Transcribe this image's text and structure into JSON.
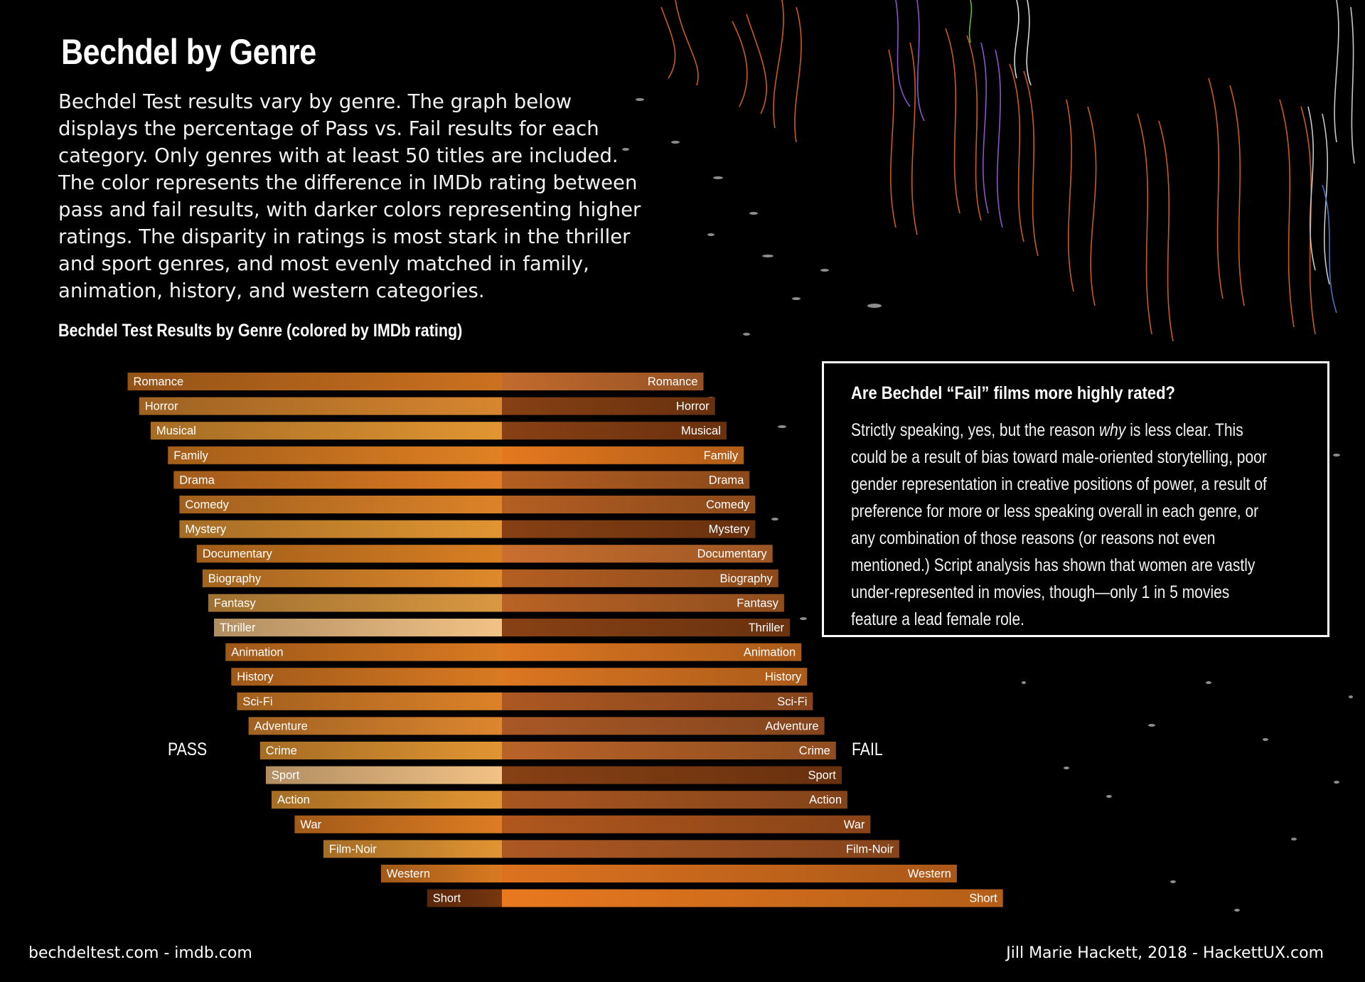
{
  "title": "Bechdel by Genre",
  "description": "Bechdel Test results vary by genre. The graph below displays the percentage of Pass vs. Fail results for each category. Only genres with at least 50 titles are included. The color represents the difference in IMDb rating between pass and fail results, with darker colors representing higher ratings. The disparity in ratings is most stark in the thriller and sport genres, and most evenly matched in family, animation, history, and western categories.",
  "chart_data": {
    "type": "bar",
    "orientation": "horizontal-diverging",
    "title": "Bechdel Test Results by Genre (colored by IMDb rating)",
    "pass_label": "PASS",
    "fail_label": "FAIL",
    "value_unit": "% of titles",
    "categories": [
      "Romance",
      "Horror",
      "Musical",
      "Family",
      "Drama",
      "Comedy",
      "Mystery",
      "Documentary",
      "Biography",
      "Fantasy",
      "Thriller",
      "Animation",
      "History",
      "Sci-Fi",
      "Adventure",
      "Crime",
      "Sport",
      "Action",
      "War",
      "Film-Noir",
      "Western",
      "Short"
    ],
    "series": [
      {
        "name": "PASS",
        "values": [
          65,
          63,
          61,
          58,
          57,
          56,
          56,
          53,
          52,
          51,
          50,
          48,
          47,
          46,
          44,
          42,
          41,
          40,
          36,
          31,
          21,
          13
        ]
      },
      {
        "name": "FAIL",
        "values": [
          35,
          37,
          39,
          42,
          43,
          44,
          44,
          47,
          48,
          49,
          50,
          52,
          53,
          54,
          56,
          58,
          59,
          60,
          64,
          69,
          79,
          87
        ]
      }
    ],
    "colors": {
      "pass": [
        "#b5651c",
        "#c0782a",
        "#c9852d",
        "#c8731f",
        "#c66f20",
        "#c47524",
        "#c9852d",
        "#c2711f",
        "#c77a26",
        "#c2883a",
        "#d8ad78",
        "#c26d1e",
        "#c26d1e",
        "#c47425",
        "#c4782a",
        "#c9852d",
        "#d8ad78",
        "#c9852d",
        "#c56f1f",
        "#c9852d",
        "#c26d1e",
        "#6a300d"
      ],
      "fail": [
        "#b0612a",
        "#7a3a12",
        "#7c3a12",
        "#d06d1c",
        "#a4561f",
        "#a4561f",
        "#7a3a12",
        "#b8652a",
        "#a4561f",
        "#a85a22",
        "#7c3b12",
        "#c86b1e",
        "#c86b1e",
        "#9c5020",
        "#9a5022",
        "#a85a24",
        "#7a3a12",
        "#9a4f1e",
        "#a04f1b",
        "#9c5020",
        "#c8681c",
        "#d46e1c"
      ]
    },
    "xlim": [
      0,
      100
    ],
    "grid": false,
    "legend": "none"
  },
  "callout": {
    "title": "Are Bechdel “Fail” films more highly rated?",
    "body_before": "Strictly speaking, yes, but the reason ",
    "body_emphasis": "why",
    "body_after": " is less clear. This could be a result of bias toward male-oriented storytelling, poor gender representation in creative positions of power, a result of preference for more or less speaking overall in each genre, or any combination of those reasons (or reasons not even mentioned.) Script analysis has shown that women are vastly under-represented in movies, though—only 1 in 5 movies feature a lead female role."
  },
  "footer": {
    "sources": "bechdeltest.com - imdb.com",
    "credit": "Jill Marie Hackett, 2018 - HackettUX.com"
  }
}
